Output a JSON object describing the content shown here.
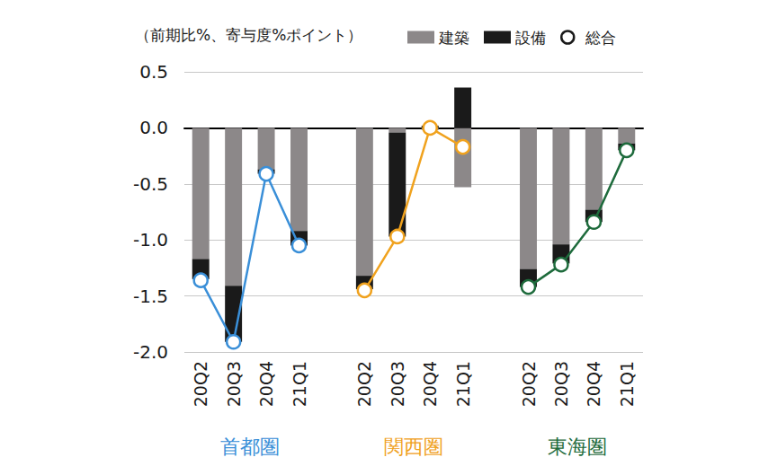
{
  "chart_data": {
    "type": "bar",
    "stacked": true,
    "ylabel": "（前期比%、寄与度%ポイント）",
    "categories": [
      "20Q2",
      "20Q3",
      "20Q4",
      "21Q1",
      null,
      "20Q2",
      "20Q3",
      "20Q4",
      "21Q1",
      null,
      "20Q2",
      "20Q3",
      "20Q4",
      "21Q1"
    ],
    "series": [
      {
        "name": "建築",
        "type": "bar",
        "color": "#8c8889",
        "values": [
          -1.17,
          -1.41,
          -0.37,
          -0.92,
          null,
          -1.32,
          -0.04,
          -0.02,
          -0.53,
          null,
          -1.26,
          -1.04,
          -0.73,
          -0.14
        ]
      },
      {
        "name": "設備",
        "type": "bar",
        "color": "#1a1a1a",
        "values": [
          -0.18,
          -0.5,
          -0.04,
          -0.13,
          null,
          -0.12,
          -0.93,
          0.02,
          0.36,
          null,
          -0.16,
          -0.17,
          -0.11,
          -0.06
        ]
      },
      {
        "name": "総合",
        "type": "line",
        "marker": "circle",
        "color": "#3a8fd8",
        "values": [
          -1.36,
          -1.91,
          -0.41,
          -1.05,
          null,
          null,
          null,
          null,
          null,
          null,
          null,
          null,
          null,
          null
        ]
      },
      {
        "name": "総合",
        "type": "line",
        "marker": "circle",
        "color": "#f0a21e",
        "values": [
          null,
          null,
          null,
          null,
          null,
          -1.45,
          -0.97,
          0.0,
          -0.17,
          null,
          null,
          null,
          null,
          null
        ]
      },
      {
        "name": "総合",
        "type": "line",
        "marker": "circle",
        "color": "#1e6b3c",
        "values": [
          null,
          null,
          null,
          null,
          null,
          null,
          null,
          null,
          null,
          null,
          -1.42,
          -1.22,
          -0.84,
          -0.2
        ]
      }
    ],
    "groups": [
      {
        "label": "首都圏",
        "color": "#3a8fd8"
      },
      {
        "label": "関西圏",
        "color": "#f0a21e"
      },
      {
        "label": "東海圏",
        "color": "#1e6b3c"
      }
    ],
    "ylim": [
      -2.0,
      0.5
    ],
    "yticks": [
      {
        "value": -2.0,
        "label": "-2.0"
      },
      -1.5,
      {
        "value": -1.0,
        "label": "-1.0"
      },
      -0.5,
      {
        "value": 0.0,
        "label": "0.0"
      },
      0.5
    ],
    "grid": true,
    "legend": "top"
  }
}
